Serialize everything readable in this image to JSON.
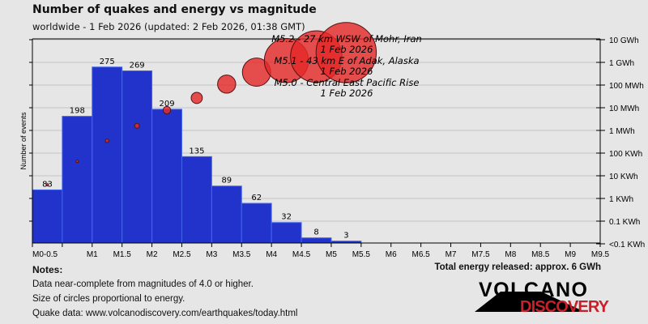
{
  "header": {
    "title": "Number of quakes and energy vs magnitude",
    "subtitle": "worldwide -  1 Feb 2026 (updated: 2 Feb 2026, 01:38 GMT)"
  },
  "chart_data": {
    "type": "bar",
    "ylabel": "Number of events",
    "x_tick_labels": [
      "M0-0.5",
      "",
      "M1",
      "M1.5",
      "M2",
      "M2.5",
      "M3",
      "M3.5",
      "M4",
      "M4.5",
      "M5",
      "M5.5",
      "M6",
      "M6.5",
      "M7",
      "M7.5",
      "M8",
      "M8.5",
      "M9",
      "M9.5"
    ],
    "bins": [
      [
        0,
        0.5
      ],
      [
        0.5,
        1
      ],
      [
        1,
        1.5
      ],
      [
        1.5,
        2
      ],
      [
        2,
        2.5
      ],
      [
        2.5,
        3
      ],
      [
        3,
        3.5
      ],
      [
        3.5,
        4
      ],
      [
        4,
        4.5
      ],
      [
        4.5,
        5
      ],
      [
        5,
        5.5
      ]
    ],
    "counts": [
      83,
      198,
      275,
      269,
      209,
      135,
      89,
      62,
      32,
      8,
      3
    ],
    "energy_wh": [
      4000,
      44000,
      350000,
      1600000,
      7800000,
      27000000,
      110000000,
      370000000,
      1200000000,
      1800000000,
      2700000000
    ],
    "right_axis_labels": [
      "10 GWh",
      "1 GWh",
      "100 MWh",
      "10 MWh",
      "1 MWh",
      "100 KWh",
      "10 KWh",
      "1 KWh",
      "0.1 KWh",
      "<0.1 KWh"
    ],
    "bar_color": "#2233cc",
    "circle_color": "#e42a2a",
    "annotations": [
      {
        "line1": "M5.2 - 27 km WSW of Mohr, Iran",
        "line2": "1 Feb 2026"
      },
      {
        "line1": "M5.1 - 43 km E of Adak, Alaska",
        "line2": "1 Feb 2026"
      },
      {
        "line1": "M5.0 - Central East Pacific Rise",
        "line2": "1 Feb 2026"
      }
    ]
  },
  "notes": {
    "heading": "Notes:",
    "lines": [
      "Data near-complete from magnitudes of 4.0 or higher.",
      "Size of circles proportional to energy.",
      "Quake data: www.volcanodiscovery.com/earthquakes/today.html"
    ]
  },
  "total_energy": "Total energy released: approx. 6 GWh",
  "logo": {
    "line1": "VOLCANO",
    "line2": "DISCOVERY",
    "color2": "#c8202b"
  }
}
